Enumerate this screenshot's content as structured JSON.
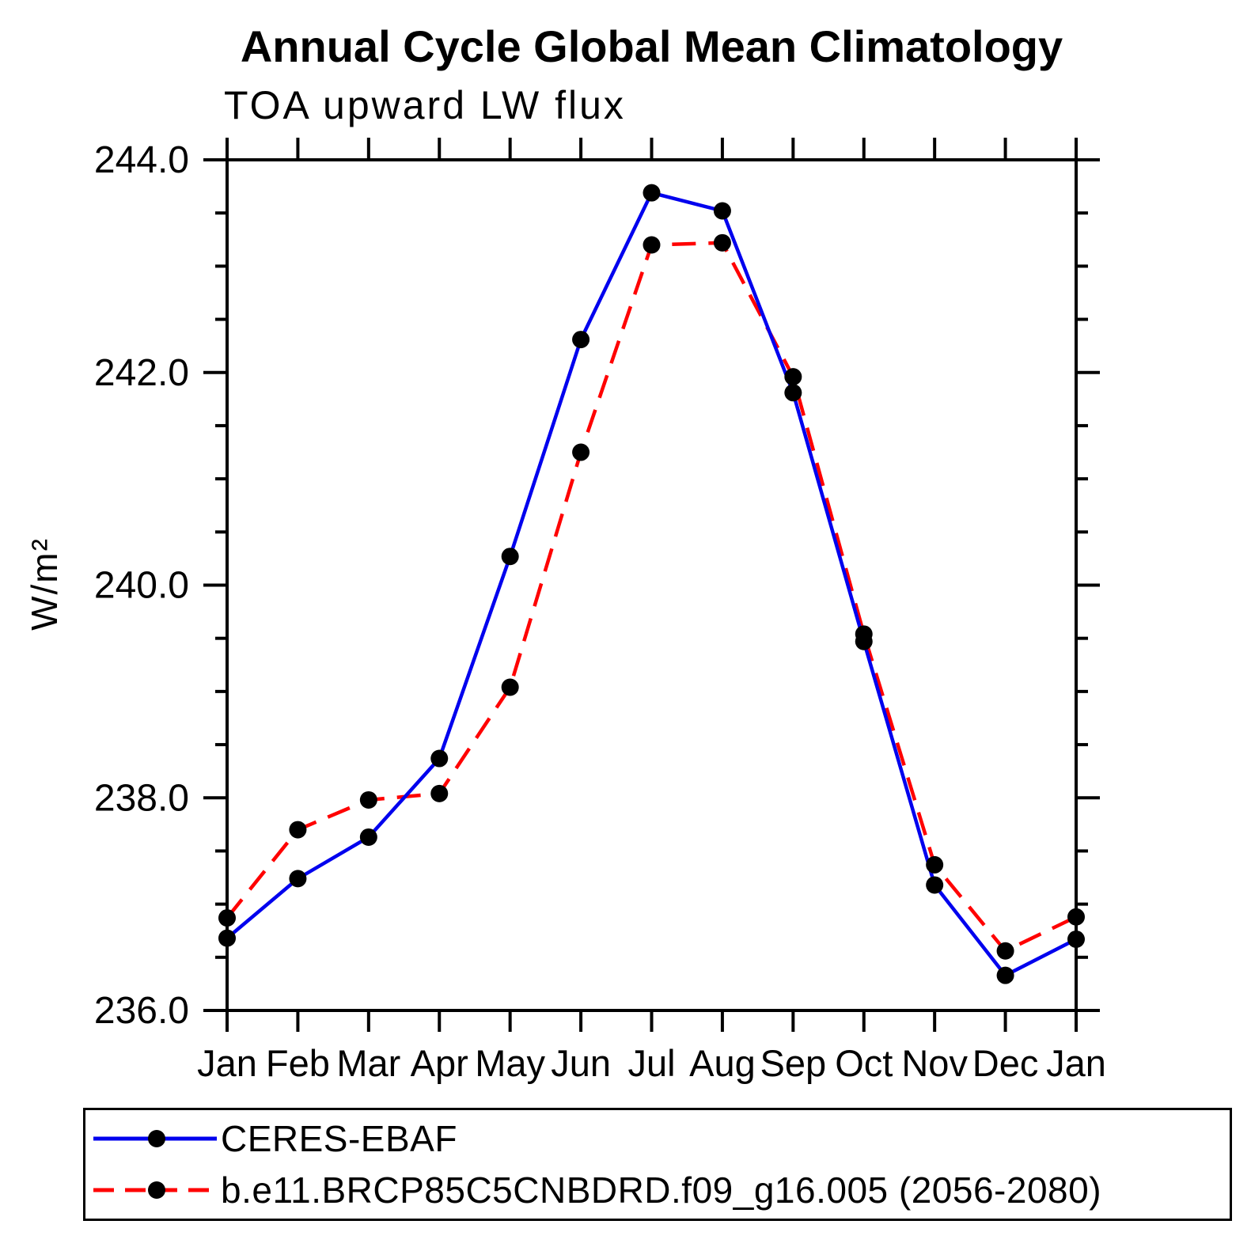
{
  "title": "Annual Cycle Global Mean Climatology",
  "subtitle": "TOA upward LW flux",
  "ylabel": "W/m²",
  "chart_data": {
    "type": "line",
    "categories": [
      "Jan",
      "Feb",
      "Mar",
      "Apr",
      "May",
      "Jun",
      "Jul",
      "Aug",
      "Sep",
      "Oct",
      "Nov",
      "Dec",
      "Jan"
    ],
    "series": [
      {
        "name": "CERES-EBAF",
        "color": "#0000ee",
        "line_style": "solid",
        "marker": "filled-circle",
        "marker_color": "#000000",
        "values": [
          236.68,
          237.24,
          237.63,
          238.37,
          240.27,
          242.31,
          243.69,
          243.52,
          241.81,
          239.47,
          237.18,
          236.33,
          236.67
        ]
      },
      {
        "name": "b.e11.BRCP85C5CNBDRD.f09_g16.005 (2056-2080)",
        "color": "#ff0000",
        "line_style": "dashed",
        "marker": "filled-circle",
        "marker_color": "#000000",
        "values": [
          236.87,
          237.7,
          237.98,
          238.04,
          239.04,
          241.25,
          243.2,
          243.22,
          241.96,
          239.54,
          237.37,
          236.56,
          236.88
        ]
      }
    ],
    "title": "Annual Cycle Global Mean Climatology",
    "xlabel": "",
    "ylabel": "W/m²",
    "ylim": [
      236.0,
      244.0
    ],
    "ytick_major": 2.0,
    "ytick_minor": 0.5,
    "ytick_labels": [
      "236.0",
      "238.0",
      "240.0",
      "242.0",
      "244.0"
    ],
    "grid": false,
    "legend_position": "bottom"
  }
}
